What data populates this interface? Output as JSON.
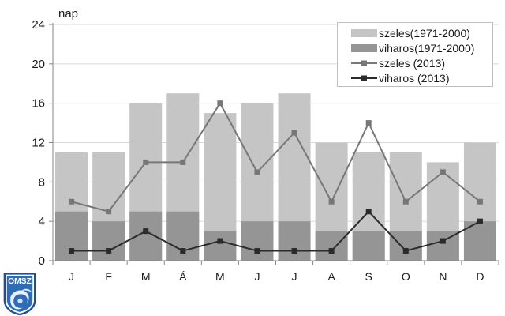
{
  "chart_data": {
    "type": "combo-bar-line",
    "title": "",
    "y_axis_label": "nap",
    "categories": [
      "J",
      "F",
      "M",
      "Á",
      "M",
      "J",
      "J",
      "A",
      "S",
      "O",
      "N",
      "D"
    ],
    "y_ticks": [
      0,
      4,
      8,
      12,
      16,
      20,
      24
    ],
    "ylim": [
      0,
      24
    ],
    "grid": true,
    "legend_position": "top-right",
    "colors": {
      "grid": "#d9d9d9",
      "axis": "#868686",
      "text": "#1a1a1a"
    },
    "series": [
      {
        "name": "szeles(1971-2000)",
        "type": "bar",
        "color": "#c5c5c5",
        "values": [
          11,
          11,
          16,
          17,
          15,
          16,
          17,
          12,
          11,
          11,
          10,
          12
        ]
      },
      {
        "name": "viharos(1971-2000)",
        "type": "bar",
        "color": "#959595",
        "values": [
          5,
          4,
          5,
          5,
          3,
          4,
          4,
          3,
          3,
          3,
          3,
          4
        ]
      },
      {
        "name": "szeles (2013)",
        "type": "line",
        "color": "#777777",
        "marker": "square",
        "values": [
          6,
          5,
          10,
          10,
          16,
          9,
          13,
          6,
          14,
          6,
          9,
          6
        ]
      },
      {
        "name": "viharos (2013)",
        "type": "line",
        "color": "#2b2b2b",
        "marker": "square",
        "values": [
          1,
          1,
          3,
          1,
          2,
          1,
          1,
          1,
          5,
          1,
          2,
          4
        ]
      }
    ]
  },
  "logo": {
    "label": "OMSZ",
    "color": "#2e6cb5"
  }
}
